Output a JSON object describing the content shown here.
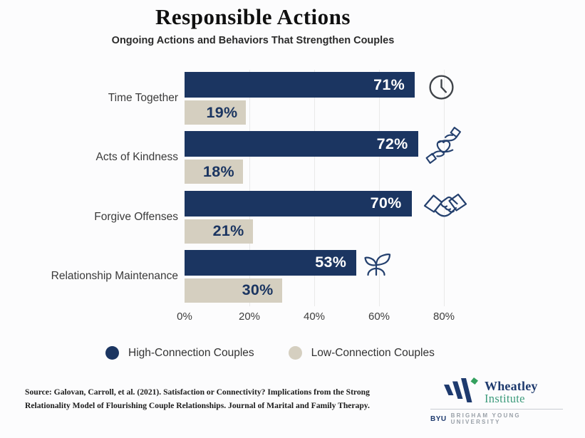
{
  "header": {
    "title": "Responsible Actions",
    "subtitle": "Ongoing Actions and Behaviors That Strengthen Couples"
  },
  "chart_data": {
    "type": "bar",
    "orientation": "horizontal",
    "title": "Responsible Actions",
    "subtitle": "Ongoing Actions and Behaviors That Strengthen Couples",
    "categories": [
      "Time Together",
      "Acts of Kindness",
      "Forgive Offenses",
      "Relationship Maintenance"
    ],
    "series": [
      {
        "name": "High-Connection Couples",
        "color": "#1b3561",
        "values": [
          71,
          72,
          70,
          53
        ]
      },
      {
        "name": "Low-Connection Couples",
        "color": "#d5cfc0",
        "values": [
          19,
          18,
          21,
          30
        ]
      }
    ],
    "value_suffix": "%",
    "x_ticks": [
      "0%",
      "20%",
      "40%",
      "60%",
      "80%"
    ],
    "xlim": [
      0,
      80
    ],
    "grid": true,
    "legend_position": "bottom",
    "category_icons": [
      "clock-icon",
      "hands-heart-icon",
      "handshake-icon",
      "seedling-icon"
    ]
  },
  "legend": {
    "items": [
      {
        "label": "High-Connection Couples",
        "color": "#1b3561"
      },
      {
        "label": "Low-Connection Couples",
        "color": "#d5cfc0"
      }
    ]
  },
  "footer": {
    "source_line1": "Source: Galovan, Carroll, et al. (2021). Satisfaction or Connectivity? Implications from the Strong",
    "source_line2": "Relationality Model of Flourishing Couple Relationships. Journal of Marital and Family Therapy.",
    "logo": {
      "name_line1": "Wheatley",
      "name_line2": "Institute",
      "byu": "BYU",
      "university": "BRIGHAM YOUNG UNIVERSITY"
    }
  },
  "colors": {
    "background": "#fcfcfd",
    "gridline": "#e9e9e9",
    "icon_navy": "#24406e",
    "clock_icon": "#3f4349",
    "wheatley_navy": "#1e3a6e",
    "wheatley_green": "#3d9b7c",
    "leaf_green": "#34a05e",
    "byu_gray": "#99a0a8"
  }
}
